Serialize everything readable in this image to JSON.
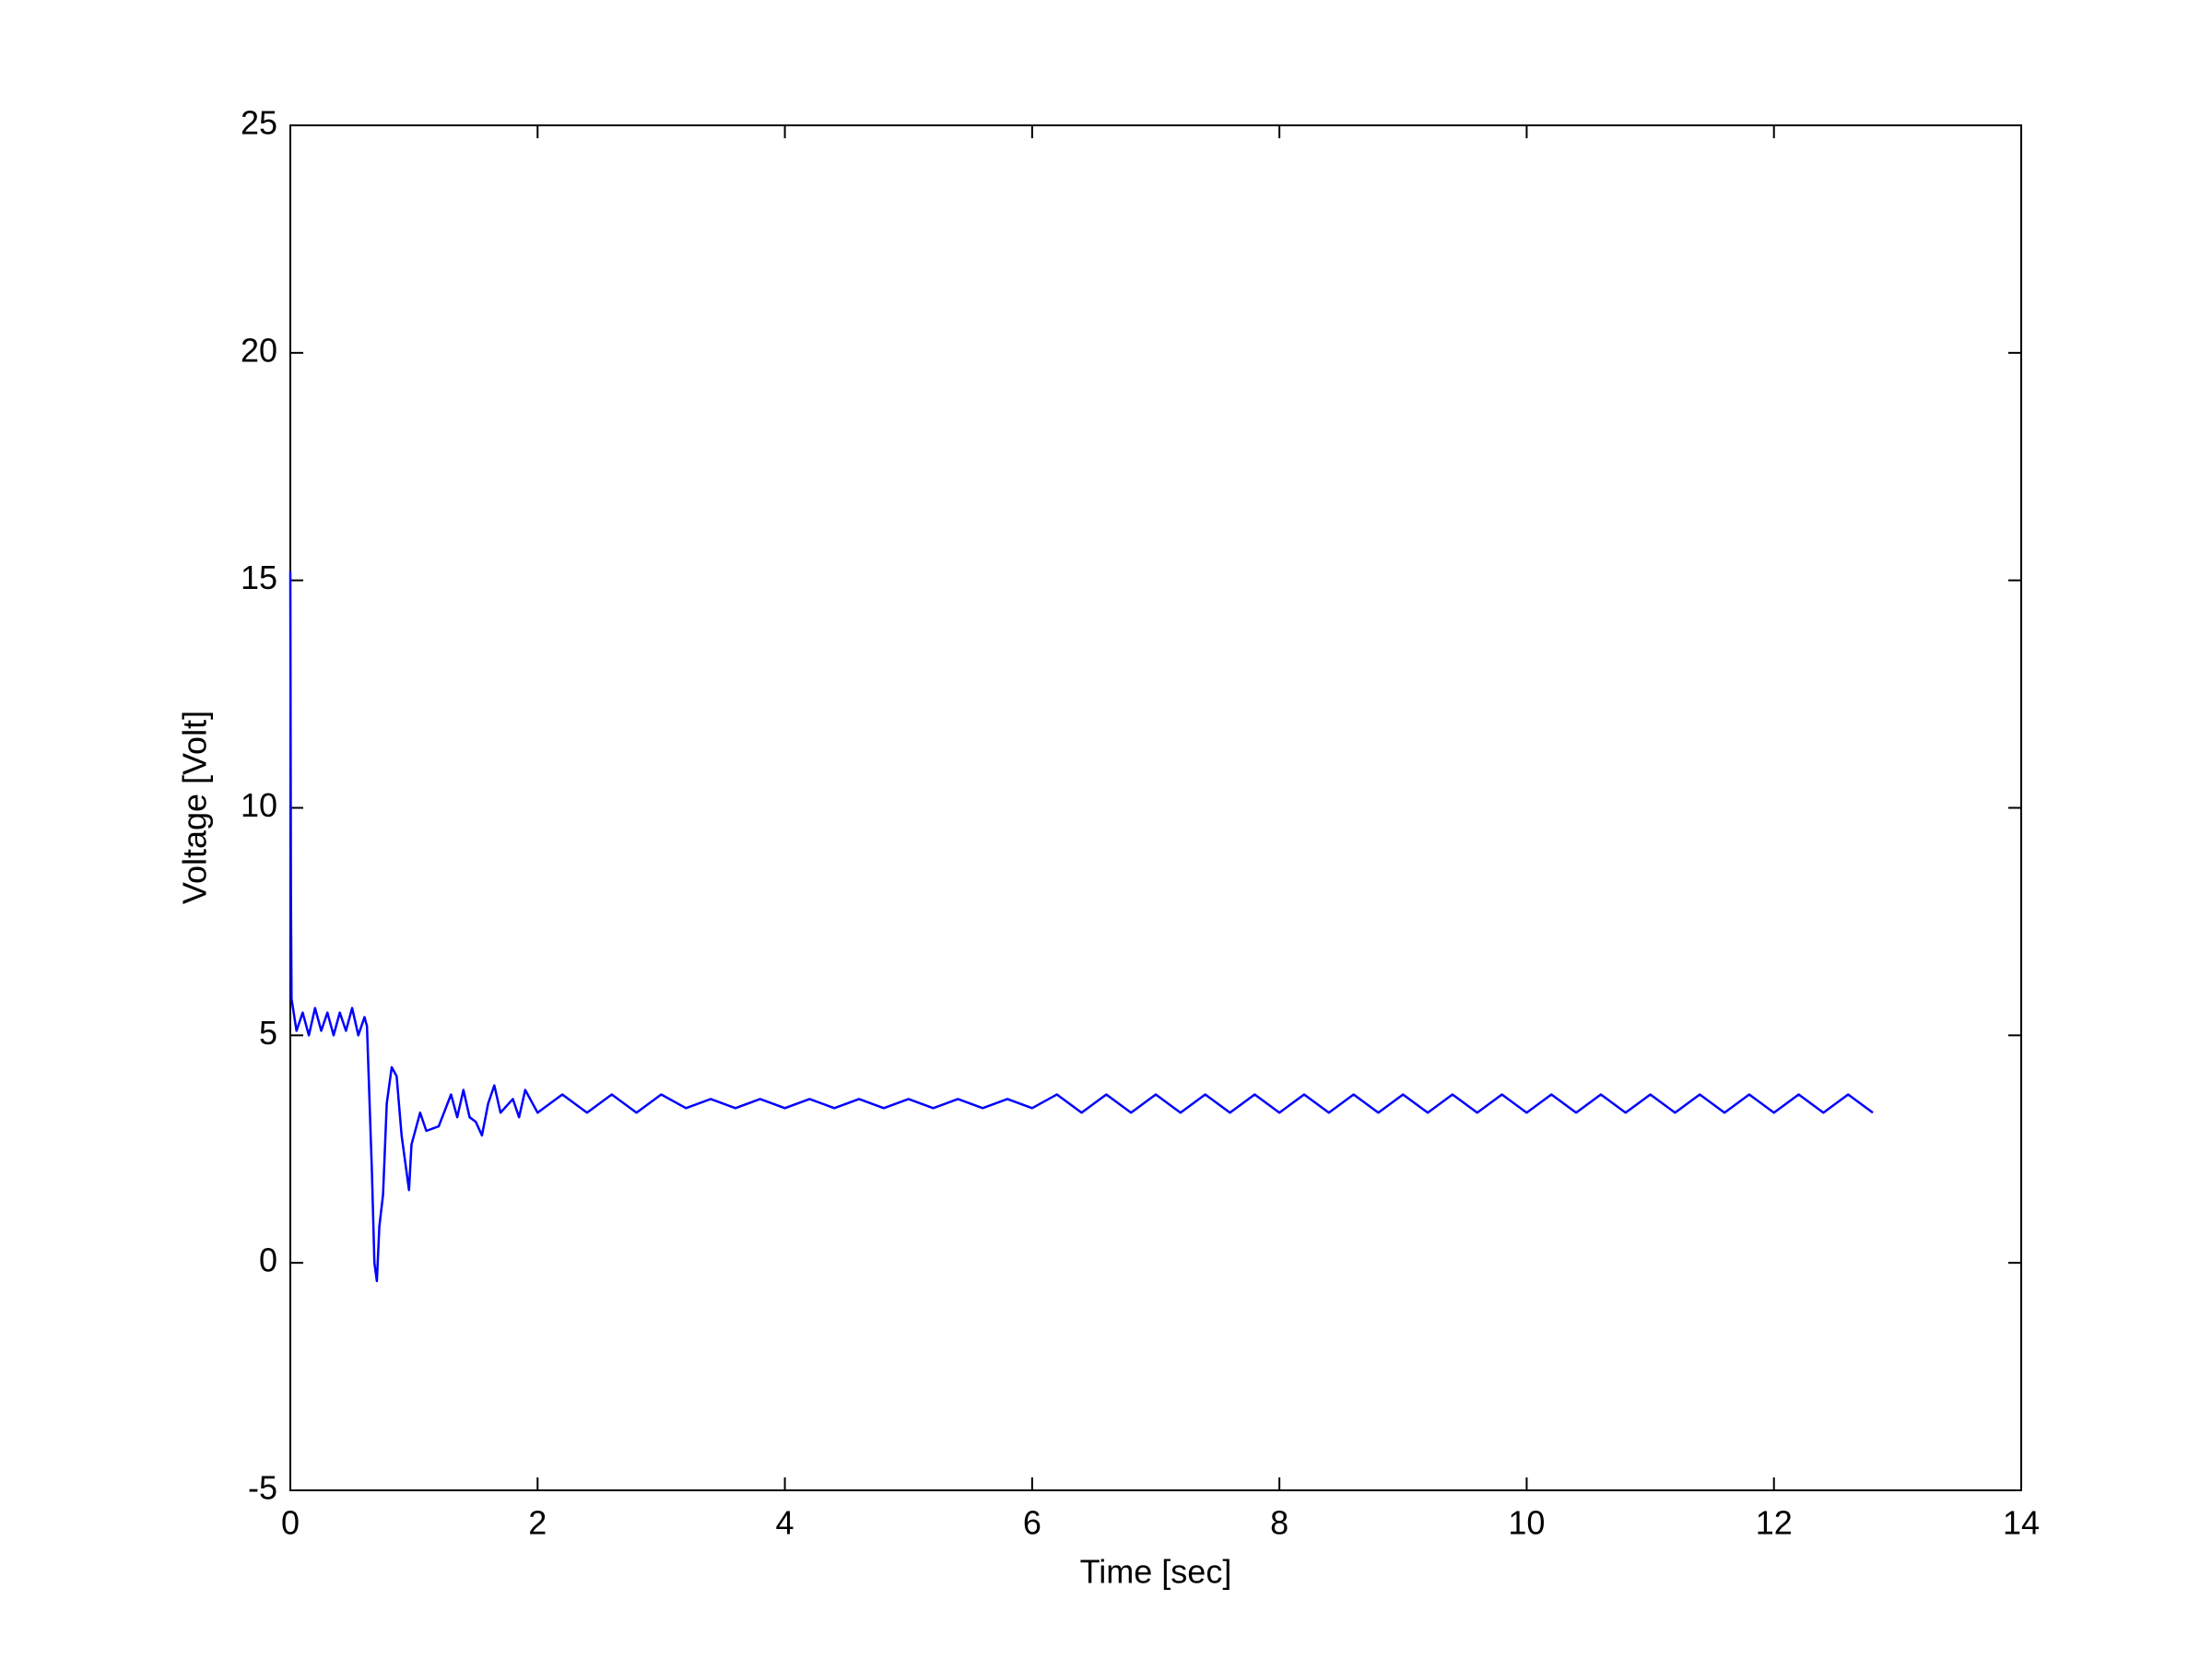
{
  "chart_data": {
    "type": "line",
    "xlabel": "Time [sec]",
    "ylabel": "Voltage [Volt]",
    "xlim": [
      0,
      14
    ],
    "xticks": [
      0,
      2,
      4,
      6,
      8,
      10,
      12,
      14
    ],
    "ylim": [
      -5,
      25
    ],
    "yticks": [
      -5,
      0,
      5,
      10,
      15,
      20,
      25
    ],
    "grid": false,
    "series": [
      {
        "color": "#0000ff",
        "x": [
          0,
          0.005,
          0.01,
          0.05,
          0.1,
          0.15,
          0.2,
          0.25,
          0.3,
          0.35,
          0.4,
          0.45,
          0.5,
          0.55,
          0.6,
          0.62,
          0.66,
          0.68,
          0.7,
          0.72,
          0.75,
          0.78,
          0.82,
          0.86,
          0.9,
          0.94,
          0.96,
          0.98,
          1.02,
          1.05,
          1.1,
          1.2,
          1.3,
          1.35,
          1.4,
          1.45,
          1.5,
          1.55,
          1.6,
          1.65,
          1.7,
          1.8,
          1.85,
          1.9,
          2,
          2.2,
          2.4,
          2.6,
          2.8,
          3,
          3.2,
          3.4,
          3.6,
          3.8,
          4,
          4.2,
          4.4,
          4.6,
          4.8,
          5,
          5.2,
          5.4,
          5.6,
          5.8,
          6,
          6.2,
          6.4,
          6.6,
          6.8,
          7,
          7.2,
          7.4,
          7.6,
          7.8,
          8,
          8.2,
          8.4,
          8.6,
          8.8,
          9,
          9.2,
          9.4,
          9.6,
          9.8,
          10,
          10.2,
          10.4,
          10.6,
          10.8,
          11,
          11.2,
          11.4,
          11.6,
          11.8,
          12,
          12.2,
          12.4,
          12.6,
          12.8
        ],
        "values": [
          15.2,
          8,
          5.8,
          5.1,
          5.5,
          5.0,
          5.6,
          5.1,
          5.5,
          5.0,
          5.5,
          5.1,
          5.6,
          5.0,
          5.4,
          5.2,
          2.0,
          0.0,
          -0.4,
          0.8,
          1.5,
          3.5,
          4.3,
          4.1,
          2.8,
          2.0,
          1.6,
          2.6,
          3.0,
          3.3,
          2.9,
          3.0,
          3.7,
          3.2,
          3.8,
          3.2,
          3.1,
          2.8,
          3.5,
          3.9,
          3.3,
          3.6,
          3.2,
          3.8,
          3.3,
          3.7,
          3.3,
          3.7,
          3.3,
          3.7,
          3.4,
          3.6,
          3.4,
          3.6,
          3.4,
          3.6,
          3.4,
          3.6,
          3.4,
          3.6,
          3.4,
          3.6,
          3.4,
          3.6,
          3.4,
          3.7,
          3.3,
          3.7,
          3.3,
          3.7,
          3.3,
          3.7,
          3.3,
          3.7,
          3.3,
          3.7,
          3.3,
          3.7,
          3.3,
          3.7,
          3.3,
          3.7,
          3.3,
          3.7,
          3.3,
          3.7,
          3.3,
          3.7,
          3.3,
          3.7,
          3.3,
          3.7,
          3.3,
          3.7,
          3.3,
          3.7,
          3.3,
          3.7,
          3.3
        ]
      }
    ]
  }
}
